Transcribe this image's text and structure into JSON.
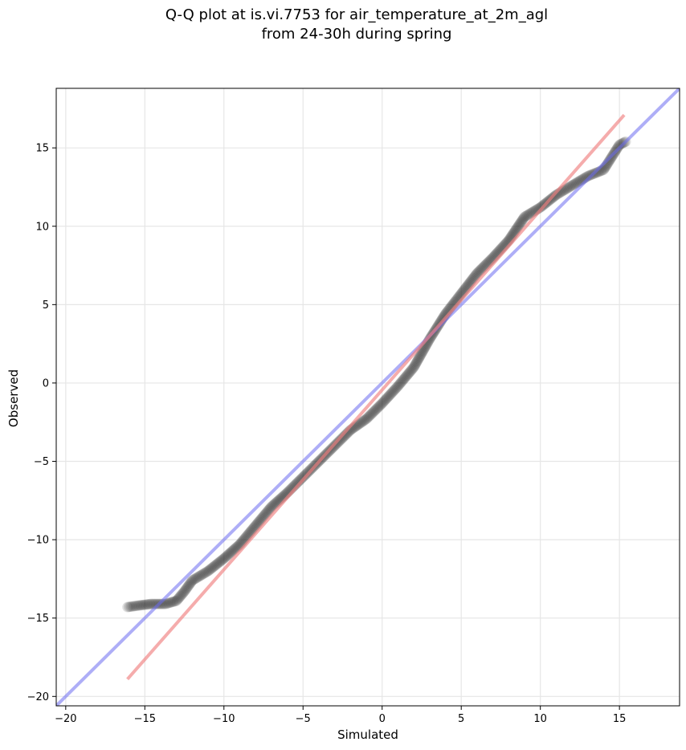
{
  "chart_data": {
    "type": "scatter",
    "title_line1": "Q-Q plot at is.vi.7753 for air_temperature_at_2m_agl",
    "title_line2": "from 24-30h during spring",
    "xlabel": "Simulated",
    "ylabel": "Observed",
    "xlim": [
      -20.6,
      18.8
    ],
    "ylim": [
      -20.6,
      18.8
    ],
    "xticks": [
      -20,
      -15,
      -10,
      -5,
      0,
      5,
      10,
      15
    ],
    "yticks": [
      -20,
      -15,
      -10,
      -5,
      0,
      5,
      10,
      15
    ],
    "xtick_labels": [
      "−20",
      "−15",
      "−10",
      "−5",
      "0",
      "5",
      "10",
      "15"
    ],
    "ytick_labels": [
      "−20",
      "−15",
      "−10",
      "−5",
      "0",
      "5",
      "10",
      "15"
    ],
    "grid": true,
    "points_color": "#222222",
    "points_alpha": 0.12,
    "identity_line": {
      "color": "#6b6bf0",
      "from": [
        -20.6,
        -20.6
      ],
      "to": [
        18.8,
        18.8
      ]
    },
    "fit_line": {
      "color": "#f08080",
      "from": [
        -16.1,
        -18.9
      ],
      "to": [
        15.3,
        17.1
      ]
    },
    "quantile_anchors": [
      [
        -16.1,
        -14.3
      ],
      [
        -15.4,
        -14.2
      ],
      [
        -14.6,
        -14.1
      ],
      [
        -13.7,
        -14.1
      ],
      [
        -13.0,
        -13.9
      ],
      [
        -12.5,
        -13.3
      ],
      [
        -12.0,
        -12.6
      ],
      [
        -11.0,
        -12.0
      ],
      [
        -10.0,
        -11.2
      ],
      [
        -9.0,
        -10.3
      ],
      [
        -8.0,
        -9.1
      ],
      [
        -7.0,
        -7.9
      ],
      [
        -6.0,
        -7.0
      ],
      [
        -5.0,
        -6.0
      ],
      [
        -4.0,
        -5.0
      ],
      [
        -3.0,
        -4.0
      ],
      [
        -2.0,
        -3.0
      ],
      [
        -1.0,
        -2.3
      ],
      [
        0.0,
        -1.3
      ],
      [
        1.0,
        -0.2
      ],
      [
        2.0,
        1.0
      ],
      [
        3.0,
        2.8
      ],
      [
        4.0,
        4.4
      ],
      [
        5.0,
        5.7
      ],
      [
        6.0,
        7.0
      ],
      [
        7.0,
        8.0
      ],
      [
        8.0,
        9.1
      ],
      [
        9.0,
        10.6
      ],
      [
        10.0,
        11.2
      ],
      [
        11.0,
        12.0
      ],
      [
        12.0,
        12.6
      ],
      [
        13.0,
        13.2
      ],
      [
        14.0,
        13.6
      ],
      [
        14.5,
        14.4
      ],
      [
        15.0,
        15.2
      ],
      [
        15.4,
        15.4
      ]
    ]
  }
}
